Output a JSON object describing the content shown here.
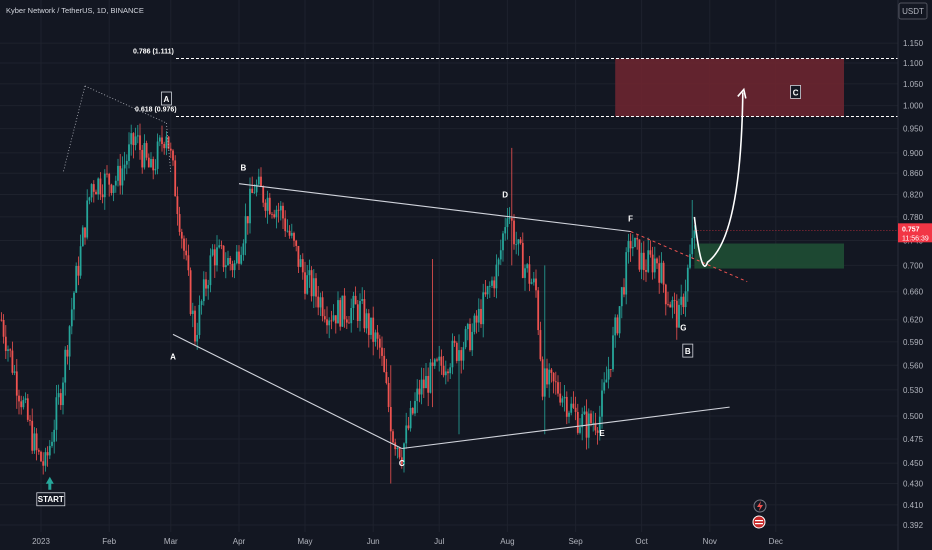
{
  "header": {
    "title": "Kyber Network / TetherUS, 1D, BINANCE"
  },
  "currency": "USDT",
  "price_label": {
    "price": "0.757",
    "countdown": "11:56:39"
  },
  "colors": {
    "background": "#131722",
    "up": "#26a69a",
    "down": "#ef5350",
    "price_tag": "#f23645"
  },
  "chart_data": {
    "type": "candlestick",
    "title": "Kyber Network / TetherUS, 1D, BINANCE",
    "ylim": [
      0.388,
      1.18
    ],
    "y_scale": "log",
    "y_ticks": [
      {
        "v": 1.15,
        "t": "1.150"
      },
      {
        "v": 1.1,
        "t": "1.100"
      },
      {
        "v": 1.05,
        "t": "1.050"
      },
      {
        "v": 1.0,
        "t": "1.000"
      },
      {
        "v": 0.95,
        "t": "0.950"
      },
      {
        "v": 0.9,
        "t": "0.900"
      },
      {
        "v": 0.86,
        "t": "0.860"
      },
      {
        "v": 0.82,
        "t": "0.820"
      },
      {
        "v": 0.78,
        "t": "0.780"
      },
      {
        "v": 0.74,
        "t": "0.740"
      },
      {
        "v": 0.7,
        "t": "0.700"
      },
      {
        "v": 0.66,
        "t": "0.660"
      },
      {
        "v": 0.62,
        "t": "0.620"
      },
      {
        "v": 0.59,
        "t": "0.590"
      },
      {
        "v": 0.56,
        "t": "0.560"
      },
      {
        "v": 0.53,
        "t": "0.530"
      },
      {
        "v": 0.5,
        "t": "0.500"
      },
      {
        "v": 0.475,
        "t": "0.475"
      },
      {
        "v": 0.45,
        "t": "0.450"
      },
      {
        "v": 0.43,
        "t": "0.430"
      },
      {
        "v": 0.41,
        "t": "0.410"
      },
      {
        "v": 0.392,
        "t": "0.392"
      }
    ],
    "x_ticks": [
      {
        "d": "2023-01-01",
        "t": "2023"
      },
      {
        "d": "2023-02-01",
        "t": "Feb"
      },
      {
        "d": "2023-03-01",
        "t": "Mar"
      },
      {
        "d": "2023-04-01",
        "t": "Apr"
      },
      {
        "d": "2023-05-01",
        "t": "May"
      },
      {
        "d": "2023-06-01",
        "t": "Jun"
      },
      {
        "d": "2023-07-01",
        "t": "Jul"
      },
      {
        "d": "2023-08-01",
        "t": "Aug"
      },
      {
        "d": "2023-09-01",
        "t": "Sep"
      },
      {
        "d": "2023-10-01",
        "t": "Oct"
      },
      {
        "d": "2023-11-01",
        "t": "Nov"
      },
      {
        "d": "2023-12-01",
        "t": "Dec"
      }
    ],
    "price_path": [
      [
        "2022-12-14",
        0.62
      ],
      [
        "2022-12-20",
        0.55
      ],
      [
        "2022-12-30",
        0.46
      ],
      [
        "2023-01-03",
        0.447
      ],
      [
        "2023-01-10",
        0.53
      ],
      [
        "2023-01-16",
        0.66
      ],
      [
        "2023-01-24",
        0.84
      ],
      [
        "2023-02-05",
        0.85
      ],
      [
        "2023-02-13",
        0.93
      ],
      [
        "2023-02-20",
        0.86
      ],
      [
        "2023-02-27",
        0.95
      ],
      [
        "2023-03-05",
        0.78
      ],
      [
        "2023-03-12",
        0.6
      ],
      [
        "2023-03-20",
        0.72
      ],
      [
        "2023-03-30",
        0.7
      ],
      [
        "2023-04-08",
        0.835
      ],
      [
        "2023-04-20",
        0.79
      ],
      [
        "2023-05-01",
        0.68
      ],
      [
        "2023-05-12",
        0.63
      ],
      [
        "2023-05-26",
        0.635
      ],
      [
        "2023-06-04",
        0.58
      ],
      [
        "2023-06-10",
        0.48
      ],
      [
        "2023-06-14",
        0.462
      ],
      [
        "2023-06-22",
        0.53
      ],
      [
        "2023-07-05",
        0.57
      ],
      [
        "2023-07-16",
        0.6
      ],
      [
        "2023-07-28",
        0.7
      ],
      [
        "2023-08-01",
        0.8
      ],
      [
        "2023-08-06",
        0.72
      ],
      [
        "2023-08-14",
        0.66
      ],
      [
        "2023-08-17",
        0.54
      ],
      [
        "2023-08-25",
        0.53
      ],
      [
        "2023-09-01",
        0.5
      ],
      [
        "2023-09-06",
        0.49
      ],
      [
        "2023-09-12",
        0.5
      ],
      [
        "2023-09-20",
        0.62
      ],
      [
        "2023-09-26",
        0.74
      ],
      [
        "2023-10-02",
        0.7
      ],
      [
        "2023-10-08",
        0.71
      ],
      [
        "2023-10-12",
        0.66
      ],
      [
        "2023-10-18",
        0.62
      ],
      [
        "2023-10-22",
        0.69
      ],
      [
        "2023-10-24",
        0.73
      ],
      [
        "2023-10-25",
        0.757
      ]
    ],
    "spikes": [
      {
        "d": "2023-06-09",
        "h": 0.56,
        "l": 0.43
      },
      {
        "d": "2023-06-28",
        "h": 0.71,
        "l": 0.51
      },
      {
        "d": "2023-07-10",
        "h": 0.6,
        "l": 0.48
      },
      {
        "d": "2023-08-03",
        "h": 0.91,
        "l": 0.7
      },
      {
        "d": "2023-08-18",
        "h": 0.7,
        "l": 0.48
      },
      {
        "d": "2023-10-24",
        "h": 0.81,
        "l": 0.71
      }
    ],
    "fib_levels": [
      {
        "value": 1.111,
        "label": "0.786 (1.111)"
      },
      {
        "value": 0.976,
        "label": "0.618 (0.976)"
      }
    ],
    "zones": [
      {
        "from": "2023-09-19",
        "to": "2024-01-01",
        "high": 1.111,
        "low": 0.976,
        "color": "#6b2530"
      },
      {
        "from": "2023-10-25",
        "to": "2024-01-01",
        "high": 0.735,
        "low": 0.695,
        "color": "#1f4e34"
      }
    ],
    "trendlines": [
      {
        "from": [
          "2023-04-01",
          0.84
        ],
        "to": [
          "2023-09-26",
          0.755
        ]
      },
      {
        "from": [
          "2023-03-02",
          0.6
        ],
        "to": [
          "2023-06-14",
          0.465
        ]
      },
      {
        "from": [
          "2023-06-14",
          0.465
        ],
        "to": [
          "2023-11-10",
          0.51
        ]
      }
    ],
    "fib_retracement": {
      "a": [
        "2023-01-21",
        1.045
      ],
      "b": [
        "2023-02-27",
        0.962
      ]
    },
    "projection": {
      "from": [
        "2023-09-26",
        0.755
      ],
      "to": [
        "2023-11-18",
        0.675
      ]
    },
    "forecast_path": [
      [
        "2023-10-25",
        0.78
      ],
      [
        "2023-10-31",
        0.705
      ],
      [
        "2023-11-07",
        0.735
      ],
      [
        "2023-11-16",
        1.03
      ]
    ],
    "wave_points": [
      {
        "label": "A",
        "d": "2023-03-02",
        "v": 0.567
      },
      {
        "label": "B",
        "d": "2023-04-03",
        "v": 0.865
      },
      {
        "label": "C",
        "d": "2023-06-14",
        "v": 0.447
      },
      {
        "label": "D",
        "d": "2023-07-31",
        "v": 0.815
      },
      {
        "label": "E",
        "d": "2023-09-13",
        "v": 0.478
      },
      {
        "label": "F",
        "d": "2023-09-26",
        "v": 0.772
      },
      {
        "label": "G",
        "d": "2023-10-20",
        "v": 0.605
      }
    ],
    "boxed_labels": [
      {
        "label": "A",
        "d": "2023-02-27",
        "v": 1.015
      },
      {
        "label": "B",
        "d": "2023-10-22",
        "v": 0.578
      },
      {
        "label": "C",
        "d": "2023-12-10",
        "v": 1.03
      }
    ],
    "start_label": {
      "text": "START",
      "d": "2023-01-05",
      "v": 0.425
    }
  }
}
